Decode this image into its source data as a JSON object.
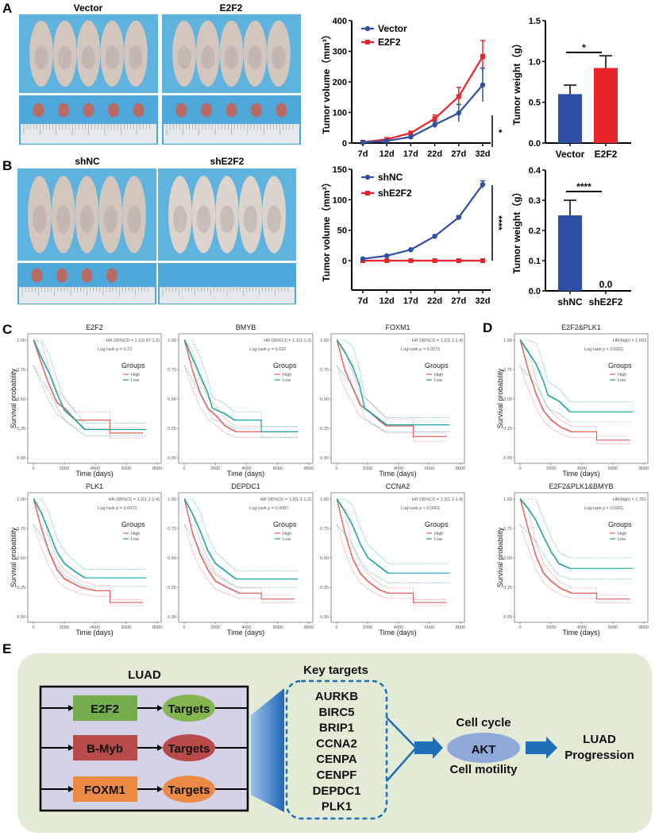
{
  "panel_labels": [
    "A",
    "B",
    "C",
    "D",
    "E"
  ],
  "photos": {
    "A": {
      "left_label": "Vector",
      "right_label": "E2F2",
      "tumors_left": 5,
      "tumors_right": 5
    },
    "B": {
      "left_label": "shNC",
      "right_label": "shE2F2",
      "tumors_left": 4,
      "tumors_right": 0
    }
  },
  "chart_data": [
    {
      "id": "A-volume",
      "type": "line",
      "ylabel": "Tumor volume（mm³）",
      "ylim": [
        0,
        400
      ],
      "yticks": [
        0,
        100,
        200,
        300,
        400
      ],
      "categories": [
        "7d",
        "12d",
        "17d",
        "22d",
        "27d",
        "32d"
      ],
      "legend": "top-left",
      "significance": "*",
      "series": [
        {
          "name": "Vector",
          "color": "#2e4fa3",
          "marker": "circle",
          "values": [
            2,
            7,
            20,
            60,
            98,
            190
          ],
          "errors": [
            3,
            3,
            5,
            10,
            28,
            55
          ]
        },
        {
          "name": "E2F2",
          "color": "#e8262a",
          "marker": "square",
          "values": [
            3,
            12,
            33,
            80,
            152,
            283
          ],
          "errors": [
            2,
            3,
            5,
            12,
            30,
            52
          ]
        }
      ]
    },
    {
      "id": "A-weight",
      "type": "bar",
      "ylabel": "Tumor weight（g）",
      "ylim": [
        0,
        1.5
      ],
      "yticks": [
        "0.0",
        "0.5",
        "1.0",
        "1.5"
      ],
      "categories": [
        "Vector",
        "E2F2"
      ],
      "values": [
        0.6,
        0.92
      ],
      "errors": [
        0.11,
        0.15
      ],
      "colors": [
        "#2e4fa3",
        "#e8262a"
      ],
      "significance": "*"
    },
    {
      "id": "B-volume",
      "type": "line",
      "ylabel": "Tumor volume（mm³）",
      "ylim": [
        0,
        150
      ],
      "yticks": [
        0,
        50,
        100,
        150
      ],
      "categories": [
        "7d",
        "12d",
        "17d",
        "22d",
        "27d",
        "32d"
      ],
      "legend": "top-left",
      "significance": "****",
      "series": [
        {
          "name": "shNC",
          "color": "#2e4fa3",
          "marker": "circle",
          "values": [
            3,
            8,
            18,
            40,
            71,
            125
          ],
          "errors": [
            1,
            1,
            1,
            2,
            3,
            6
          ]
        },
        {
          "name": "shE2F2",
          "color": "#e8262a",
          "marker": "square",
          "values": [
            0,
            0,
            0,
            0,
            0,
            0
          ],
          "errors": [
            0,
            0,
            0,
            0,
            0,
            0
          ]
        }
      ]
    },
    {
      "id": "B-weight",
      "type": "bar",
      "ylabel": "Tumor weight（g）",
      "ylim": [
        0,
        0.4
      ],
      "yticks": [
        "0.0",
        "0.1",
        "0.2",
        "0.3",
        "0.4"
      ],
      "categories": [
        "shNC",
        "shE2F2"
      ],
      "values": [
        0.25,
        0.0
      ],
      "errors": [
        0.05,
        0
      ],
      "colors": [
        "#2e4fa3",
        "#2e4fa3"
      ],
      "significance": "****",
      "data_label": "0.0"
    }
  ],
  "km_common": {
    "xlabel": "Time (days)",
    "ylabel": "Survival probability",
    "xticks": [
      "0",
      "2000",
      "4000",
      "6000",
      "8000"
    ],
    "xlim": [
      0,
      8000
    ],
    "yticks": [
      "0.00",
      "0.25",
      "0.50",
      "0.75",
      "1.00"
    ],
    "ylim": [
      0,
      1
    ],
    "legend_title": "Groups",
    "groups": [
      "High",
      "Low"
    ],
    "colors": {
      "High": "#e0605a",
      "Low": "#1aa3a3"
    }
  },
  "km_plots": [
    {
      "title": "E2F2",
      "hr": "HR (95%CI) = 1.1(0.97-1.2)",
      "p": "Log-rank p = 0.22",
      "high": [
        [
          0,
          1
        ],
        [
          500,
          0.8
        ],
        [
          1000,
          0.62
        ],
        [
          1500,
          0.47
        ],
        [
          2000,
          0.42
        ],
        [
          2700,
          0.32
        ],
        [
          4950,
          0.32
        ],
        [
          4950,
          0.21
        ],
        [
          7100,
          0.21
        ]
      ],
      "low": [
        [
          0,
          1
        ],
        [
          500,
          0.85
        ],
        [
          1000,
          0.72
        ],
        [
          1500,
          0.55
        ],
        [
          2000,
          0.4
        ],
        [
          2700,
          0.32
        ],
        [
          3300,
          0.24
        ],
        [
          7300,
          0.24
        ]
      ]
    },
    {
      "title": "BMYB",
      "hr": "HR (95%CI) = 1.1(1-1.2)",
      "p": "Log-rank p = 0.022",
      "high": [
        [
          0,
          1
        ],
        [
          500,
          0.75
        ],
        [
          1000,
          0.55
        ],
        [
          1500,
          0.42
        ],
        [
          2000,
          0.36
        ],
        [
          2600,
          0.27
        ],
        [
          3300,
          0.22
        ],
        [
          7300,
          0.22
        ]
      ],
      "low": [
        [
          0,
          1
        ],
        [
          500,
          0.85
        ],
        [
          1000,
          0.7
        ],
        [
          1500,
          0.55
        ],
        [
          1800,
          0.42
        ],
        [
          2500,
          0.38
        ],
        [
          3200,
          0.32
        ],
        [
          4950,
          0.32
        ],
        [
          4950,
          0.22
        ],
        [
          7300,
          0.22
        ]
      ]
    },
    {
      "title": "FOXM1",
      "hr": "HR (95%CI) = 1.2(1.1-1.4)",
      "p": "Log-rank p = 0.0072",
      "high": [
        [
          0,
          1
        ],
        [
          500,
          0.75
        ],
        [
          1000,
          0.6
        ],
        [
          1500,
          0.45
        ],
        [
          2000,
          0.4
        ],
        [
          2700,
          0.32
        ],
        [
          3200,
          0.27
        ],
        [
          4950,
          0.27
        ],
        [
          4950,
          0.18
        ],
        [
          7100,
          0.18
        ]
      ],
      "low": [
        [
          0,
          1
        ],
        [
          500,
          0.9
        ],
        [
          1000,
          0.78
        ],
        [
          1500,
          0.6
        ],
        [
          1800,
          0.42
        ],
        [
          2500,
          0.35
        ],
        [
          3200,
          0.28
        ],
        [
          7300,
          0.28
        ]
      ]
    },
    {
      "title": "PLK1",
      "hr": "HR (95%CI) = 1.2(1.1-1.4)",
      "p": "Log-rank p = 0.0072",
      "high": [
        [
          0,
          1
        ],
        [
          500,
          0.75
        ],
        [
          1000,
          0.55
        ],
        [
          1500,
          0.4
        ],
        [
          2000,
          0.32
        ],
        [
          3000,
          0.25
        ],
        [
          4000,
          0.22
        ],
        [
          4950,
          0.22
        ],
        [
          4950,
          0.12
        ],
        [
          7100,
          0.12
        ]
      ],
      "low": [
        [
          0,
          1
        ],
        [
          500,
          0.88
        ],
        [
          1000,
          0.72
        ],
        [
          1500,
          0.55
        ],
        [
          2000,
          0.45
        ],
        [
          2700,
          0.38
        ],
        [
          3300,
          0.33
        ],
        [
          7300,
          0.33
        ]
      ]
    },
    {
      "title": "DEPDC1",
      "hr": "HR (95%CI) = 1.2(1.1-1.3)",
      "p": "Log-rank p = 0.0087",
      "high": [
        [
          0,
          1
        ],
        [
          500,
          0.72
        ],
        [
          1000,
          0.53
        ],
        [
          1500,
          0.4
        ],
        [
          2000,
          0.3
        ],
        [
          2700,
          0.25
        ],
        [
          3500,
          0.2
        ],
        [
          4950,
          0.2
        ],
        [
          4950,
          0.15
        ],
        [
          7100,
          0.15
        ]
      ],
      "low": [
        [
          0,
          1
        ],
        [
          500,
          0.88
        ],
        [
          1000,
          0.73
        ],
        [
          1500,
          0.56
        ],
        [
          2000,
          0.45
        ],
        [
          2700,
          0.38
        ],
        [
          3300,
          0.32
        ],
        [
          7300,
          0.32
        ]
      ]
    },
    {
      "title": "CCNA2",
      "hr": "HR (95%CI) = 1.3(1.1-1.4)",
      "p": "Log-rank p < 0.0001",
      "high": [
        [
          0,
          1
        ],
        [
          500,
          0.72
        ],
        [
          1000,
          0.5
        ],
        [
          1500,
          0.37
        ],
        [
          2000,
          0.3
        ],
        [
          2700,
          0.23
        ],
        [
          3300,
          0.2
        ],
        [
          4950,
          0.2
        ],
        [
          4950,
          0.12
        ],
        [
          7100,
          0.12
        ]
      ],
      "low": [
        [
          0,
          1
        ],
        [
          500,
          0.9
        ],
        [
          1000,
          0.78
        ],
        [
          1500,
          0.62
        ],
        [
          2000,
          0.5
        ],
        [
          2700,
          0.43
        ],
        [
          3300,
          0.37
        ],
        [
          7300,
          0.37
        ]
      ]
    },
    {
      "title": "E2F2&PLK1",
      "hr": "HR(high) = 1.663",
      "p": "Log-rank p < 0.0001",
      "high": [
        [
          0,
          1
        ],
        [
          500,
          0.75
        ],
        [
          1000,
          0.55
        ],
        [
          1500,
          0.4
        ],
        [
          2000,
          0.32
        ],
        [
          2600,
          0.26
        ],
        [
          3300,
          0.22
        ],
        [
          4950,
          0.22
        ],
        [
          4950,
          0.15
        ],
        [
          7100,
          0.15
        ]
      ],
      "low": [
        [
          0,
          1
        ],
        [
          500,
          0.9
        ],
        [
          1000,
          0.8
        ],
        [
          1500,
          0.65
        ],
        [
          1800,
          0.53
        ],
        [
          2500,
          0.48
        ],
        [
          3200,
          0.39
        ],
        [
          7300,
          0.39
        ]
      ]
    },
    {
      "title": "E2F2&PLK1&BMYB",
      "hr": "HR(high) = 1.751",
      "p": "Log-rank p < 0.0001",
      "high": [
        [
          0,
          1
        ],
        [
          500,
          0.75
        ],
        [
          1000,
          0.52
        ],
        [
          1500,
          0.37
        ],
        [
          2000,
          0.3
        ],
        [
          2600,
          0.24
        ],
        [
          3300,
          0.2
        ],
        [
          4950,
          0.2
        ],
        [
          4950,
          0.15
        ],
        [
          7100,
          0.15
        ]
      ],
      "low": [
        [
          0,
          1
        ],
        [
          500,
          0.92
        ],
        [
          1000,
          0.82
        ],
        [
          1500,
          0.68
        ],
        [
          2000,
          0.55
        ],
        [
          2500,
          0.45
        ],
        [
          3200,
          0.41
        ],
        [
          7300,
          0.41
        ]
      ]
    }
  ],
  "diagram": {
    "luad_label": "LUAD",
    "factors": [
      {
        "name": "E2F2",
        "color": "#74ad4e",
        "target_color": "#84b64f"
      },
      {
        "name": "B-Myb",
        "color": "#b94a4a",
        "target_color": "#b94a4a"
      },
      {
        "name": "FOXM1",
        "color": "#ec8a44",
        "target_color": "#ec8a44"
      }
    ],
    "targets_label": "Targets",
    "key_targets_title": "Key targets",
    "key_targets": [
      "AURKB",
      "BIRC5",
      "BRIP1",
      "CCNA2",
      "CENPA",
      "CENPF",
      "DEPDC1",
      "PLK1"
    ],
    "hub": "AKT",
    "hub_top": "Cell cycle",
    "hub_bottom": "Cell motility",
    "outcome": [
      "LUAD",
      "Progression"
    ]
  }
}
